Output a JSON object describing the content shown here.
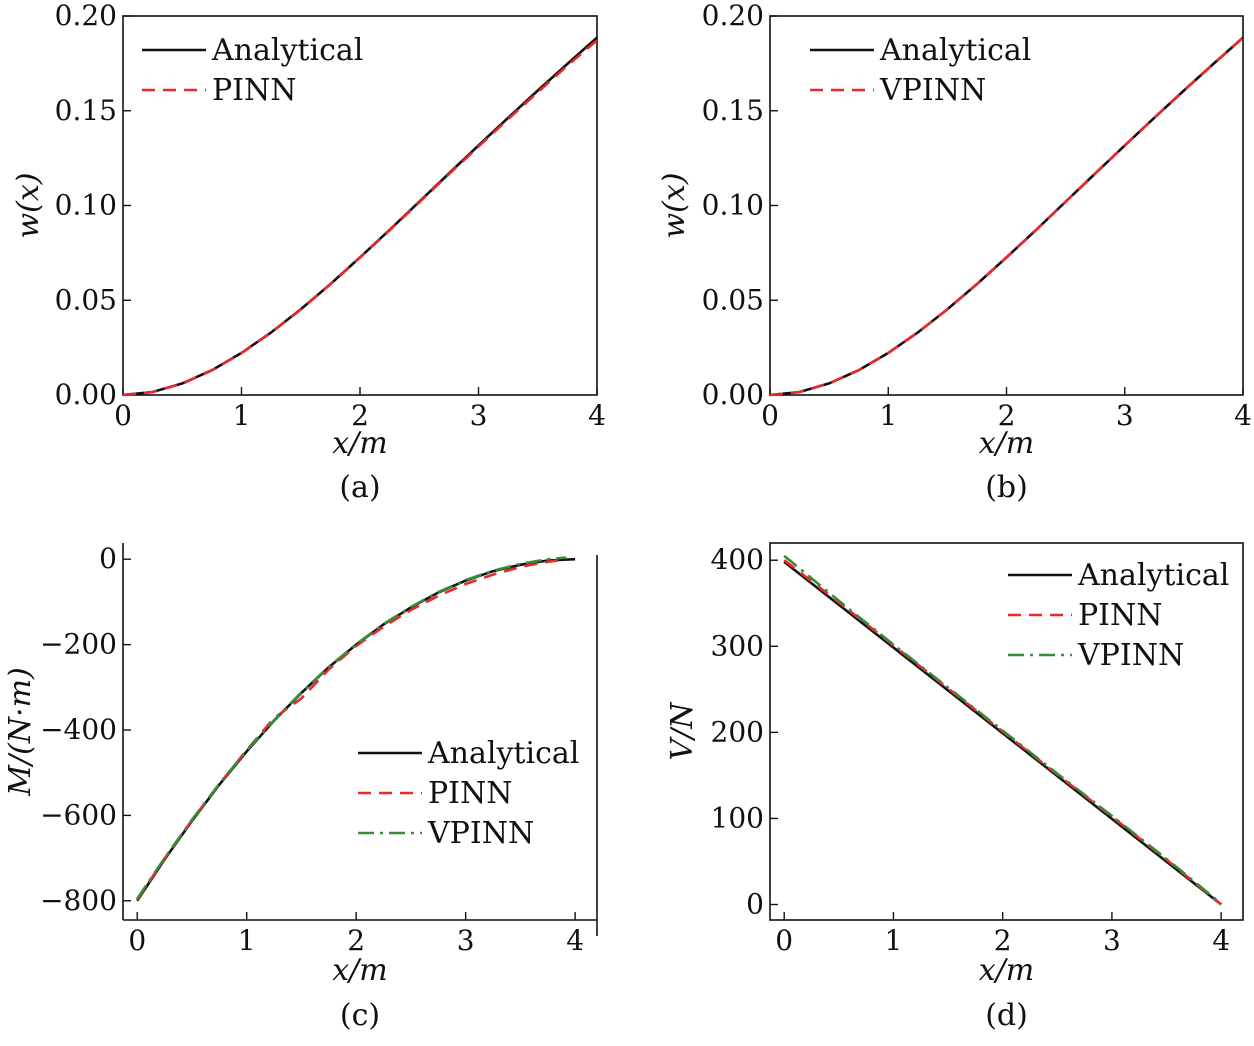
{
  "colors": {
    "analytical": "#111111",
    "pinn": "#e8282d",
    "vpinn": "#3a8a3c"
  },
  "chart_data": [
    {
      "id": "a",
      "type": "line",
      "caption": "(a)",
      "xlabel": "x/m",
      "ylabel": "w(x)",
      "xlim": [
        0,
        4
      ],
      "ylim": [
        0,
        0.2
      ],
      "xticks": [
        "0",
        "1",
        "2",
        "3",
        "4"
      ],
      "yticks": [
        "0.00",
        "0.05",
        "0.10",
        "0.15",
        "0.20"
      ],
      "legend_position": "top-left",
      "grid": false,
      "series": [
        {
          "name": "Analytical",
          "style": "solid",
          "color": "#111111",
          "x": [
            0,
            0.25,
            0.5,
            0.75,
            1,
            1.25,
            1.5,
            1.75,
            2,
            2.25,
            2.5,
            2.75,
            3,
            3.25,
            3.5,
            3.75,
            4
          ],
          "y": [
            0,
            0.0016,
            0.0061,
            0.0131,
            0.0222,
            0.033,
            0.0452,
            0.0585,
            0.0726,
            0.0871,
            0.102,
            0.1169,
            0.1317,
            0.1463,
            0.1607,
            0.1747,
            0.1886
          ]
        },
        {
          "name": "PINN",
          "style": "dashed",
          "color": "#e8282d",
          "x": [
            0,
            0.25,
            0.5,
            0.75,
            1,
            1.25,
            1.5,
            1.75,
            2,
            2.25,
            2.5,
            2.75,
            3,
            3.25,
            3.5,
            3.75,
            4
          ],
          "y": [
            0,
            0.0016,
            0.006,
            0.013,
            0.0221,
            0.0329,
            0.0451,
            0.0584,
            0.0725,
            0.0869,
            0.1017,
            0.1165,
            0.1311,
            0.1456,
            0.1598,
            0.1738,
            0.1872
          ]
        }
      ]
    },
    {
      "id": "b",
      "type": "line",
      "caption": "(b)",
      "xlabel": "x/m",
      "ylabel": "w(x)",
      "xlim": [
        0,
        4
      ],
      "ylim": [
        0,
        0.2
      ],
      "xticks": [
        "0",
        "1",
        "2",
        "3",
        "4"
      ],
      "yticks": [
        "0.00",
        "0.05",
        "0.10",
        "0.15",
        "0.20"
      ],
      "legend_position": "top-left",
      "grid": false,
      "series": [
        {
          "name": "Analytical",
          "style": "solid",
          "color": "#111111",
          "x": [
            0,
            0.25,
            0.5,
            0.75,
            1,
            1.25,
            1.5,
            1.75,
            2,
            2.25,
            2.5,
            2.75,
            3,
            3.25,
            3.5,
            3.75,
            4
          ],
          "y": [
            0,
            0.0016,
            0.0061,
            0.0131,
            0.0222,
            0.033,
            0.0452,
            0.0585,
            0.0726,
            0.0871,
            0.102,
            0.1169,
            0.1317,
            0.1463,
            0.1607,
            0.1747,
            0.1886
          ]
        },
        {
          "name": "VPINN",
          "style": "dashed",
          "color": "#e8282d",
          "x": [
            0,
            0.25,
            0.5,
            0.75,
            1,
            1.25,
            1.5,
            1.75,
            2,
            2.25,
            2.5,
            2.75,
            3,
            3.25,
            3.5,
            3.75,
            4
          ],
          "y": [
            0,
            0.0016,
            0.0061,
            0.0131,
            0.0222,
            0.033,
            0.0452,
            0.0585,
            0.0726,
            0.0871,
            0.102,
            0.1169,
            0.1317,
            0.1463,
            0.1607,
            0.1747,
            0.1886
          ]
        }
      ]
    },
    {
      "id": "c",
      "type": "line",
      "caption": "(c)",
      "xlabel": "x/m",
      "ylabel": "M/(N·m)",
      "xlim": [
        -0.13,
        4.2
      ],
      "ylim": [
        -845,
        38
      ],
      "xticks": [
        "0",
        "1",
        "2",
        "3",
        "4"
      ],
      "yticks": [
        "−800",
        "−600",
        "−400",
        "−200",
        "0"
      ],
      "ytick_values": [
        -800,
        -600,
        -400,
        -200,
        0
      ],
      "xtick_values": [
        0,
        1,
        2,
        3,
        4
      ],
      "legend_position": "bottom-right",
      "grid": false,
      "series": [
        {
          "name": "Analytical",
          "style": "solid",
          "color": "#111111",
          "x": [
            0,
            0.25,
            0.5,
            0.75,
            1,
            1.25,
            1.5,
            1.75,
            2,
            2.25,
            2.5,
            2.75,
            3,
            3.25,
            3.5,
            3.75,
            4
          ],
          "y": [
            -800,
            -703,
            -613,
            -528,
            -450,
            -378,
            -313,
            -253,
            -200,
            -153,
            -113,
            -78,
            -50,
            -28,
            -13,
            -3,
            0
          ]
        },
        {
          "name": "PINN",
          "style": "dashed",
          "color": "#e8282d",
          "x": [
            0,
            0.25,
            0.5,
            0.75,
            1,
            1.25,
            1.5,
            1.75,
            2,
            2.25,
            2.5,
            2.75,
            3,
            3.25,
            3.5,
            3.75,
            3.92
          ],
          "y": [
            -798,
            -701,
            -611,
            -527,
            -447,
            -372,
            -326,
            -258,
            -203,
            -158,
            -119,
            -86,
            -58,
            -36,
            -18,
            -6,
            0
          ]
        },
        {
          "name": "VPINN",
          "style": "dashdot",
          "color": "#3a8a3c",
          "x": [
            0,
            0.25,
            0.5,
            0.75,
            1,
            1.25,
            1.5,
            1.75,
            2,
            2.25,
            2.5,
            2.75,
            3,
            3.25,
            3.5,
            3.75,
            3.92
          ],
          "y": [
            -795,
            -700,
            -610,
            -526,
            -448,
            -377,
            -312,
            -252,
            -199,
            -152,
            -112,
            -77,
            -49,
            -27,
            -11,
            0,
            4
          ]
        }
      ]
    },
    {
      "id": "d",
      "type": "line",
      "caption": "(d)",
      "xlabel": "x/m",
      "ylabel": "V/N",
      "xlim": [
        -0.13,
        4.2
      ],
      "ylim": [
        -18,
        420
      ],
      "xticks": [
        "0",
        "1",
        "2",
        "3",
        "4"
      ],
      "yticks": [
        "0",
        "100",
        "200",
        "300",
        "400"
      ],
      "ytick_values": [
        0,
        100,
        200,
        300,
        400
      ],
      "xtick_values": [
        0,
        1,
        2,
        3,
        4
      ],
      "legend_position": "top-right",
      "grid": false,
      "series": [
        {
          "name": "Analytical",
          "style": "solid",
          "color": "#111111",
          "x": [
            0,
            4
          ],
          "y": [
            398,
            0
          ]
        },
        {
          "name": "PINN",
          "style": "dashed",
          "color": "#e8282d",
          "x": [
            0,
            0.5,
            1,
            1.5,
            2,
            2.5,
            3,
            3.5,
            4
          ],
          "y": [
            400,
            351,
            301,
            251,
            201,
            151,
            102,
            52,
            0
          ]
        },
        {
          "name": "VPINN",
          "style": "dashdot",
          "color": "#3a8a3c",
          "x": [
            0,
            0.5,
            1,
            1.5,
            2,
            2.5,
            3,
            3.5,
            4
          ],
          "y": [
            405,
            353,
            302,
            252,
            202,
            152,
            103,
            53,
            1
          ]
        }
      ]
    }
  ]
}
